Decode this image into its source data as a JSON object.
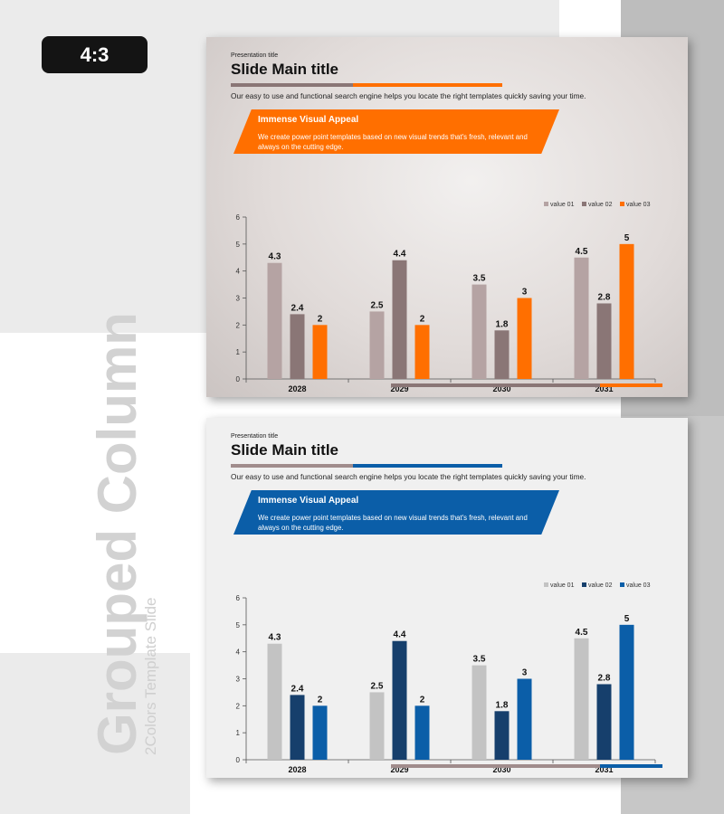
{
  "badge": {
    "label": "4:3"
  },
  "side": {
    "title": "Grouped Column",
    "subtitle": "2Colors Template Slide"
  },
  "slides": [
    {
      "theme": "orange",
      "presentation_title": "Presentation title",
      "main_title": "Slide Main title",
      "description": "Our easy to use and functional search engine helps you locate the right templates quickly saving your time.",
      "banner_title": "Immense Visual Appeal",
      "banner_text": "We create power point templates based on new visual trends that's fresh, relevant and always on the cutting edge.",
      "colors": {
        "accent": "#ff6f00",
        "series": [
          "#b5a3a3",
          "#8a7676",
          "#ff6f00"
        ],
        "neutral": "#8a7676"
      }
    },
    {
      "theme": "blue",
      "presentation_title": "Presentation title",
      "main_title": "Slide Main title",
      "description": "Our easy to use and functional search engine helps you locate the right templates quickly saving your time.",
      "banner_title": "Immense Visual Appeal",
      "banner_text": "We create power point templates based on new visual trends that's fresh, relevant and always on the cutting edge.",
      "colors": {
        "accent": "#0b5ea8",
        "series": [
          "#c3c3c3",
          "#163f6c",
          "#0b5ea8"
        ],
        "neutral": "#a08c8c"
      }
    }
  ],
  "chart_data": [
    {
      "type": "bar",
      "categories": [
        "2028",
        "2029",
        "2030",
        "2031"
      ],
      "series": [
        {
          "name": "value 01",
          "values": [
            4.3,
            2.5,
            3.5,
            4.5
          ]
        },
        {
          "name": "value 02",
          "values": [
            2.4,
            4.4,
            1.8,
            2.8
          ]
        },
        {
          "name": "value 03",
          "values": [
            2,
            2,
            3,
            5
          ]
        }
      ],
      "title": "",
      "xlabel": "",
      "ylabel": "",
      "ylim": [
        0,
        6
      ],
      "yticks": [
        0,
        1,
        2,
        3,
        4,
        5,
        6
      ],
      "legend": "top-right",
      "grid": false
    },
    {
      "type": "bar",
      "categories": [
        "2028",
        "2029",
        "2030",
        "2031"
      ],
      "series": [
        {
          "name": "value 01",
          "values": [
            4.3,
            2.5,
            3.5,
            4.5
          ]
        },
        {
          "name": "value 02",
          "values": [
            2.4,
            4.4,
            1.8,
            2.8
          ]
        },
        {
          "name": "value 03",
          "values": [
            2,
            2,
            3,
            5
          ]
        }
      ],
      "title": "",
      "xlabel": "",
      "ylabel": "",
      "ylim": [
        0,
        6
      ],
      "yticks": [
        0,
        1,
        2,
        3,
        4,
        5,
        6
      ],
      "legend": "top-right",
      "grid": false
    }
  ]
}
